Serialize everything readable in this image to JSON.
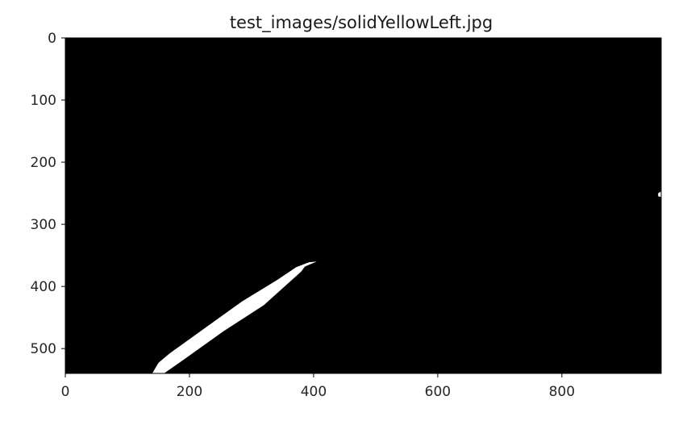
{
  "chart_data": {
    "type": "heatmap",
    "title": "test_images/solidYellowLeft.jpg",
    "xlabel": "",
    "ylabel": "",
    "xlim": [
      0,
      960
    ],
    "ylim": [
      540,
      0
    ],
    "x_ticks": [
      0,
      200,
      400,
      600,
      800
    ],
    "y_ticks": [
      0,
      100,
      200,
      300,
      400,
      500
    ],
    "grid": false,
    "background_color": "#000000",
    "foreground_color": "#ffffff",
    "masked_regions": [
      {
        "name": "left-lane-line",
        "polygon": [
          [
            140,
            540
          ],
          [
            159,
            540
          ],
          [
            192,
            517
          ],
          [
            255,
            472
          ],
          [
            320,
            430
          ],
          [
            380,
            376
          ],
          [
            386,
            368
          ],
          [
            405,
            360
          ],
          [
            393,
            361
          ],
          [
            372,
            369
          ],
          [
            342,
            389
          ],
          [
            285,
            424
          ],
          [
            218,
            472
          ],
          [
            168,
            508
          ],
          [
            150,
            523
          ]
        ]
      },
      {
        "name": "right-edge-spot",
        "polygon": [
          [
            955,
            250
          ],
          [
            960,
            247
          ],
          [
            960,
            256
          ],
          [
            955,
            255
          ]
        ]
      }
    ]
  }
}
